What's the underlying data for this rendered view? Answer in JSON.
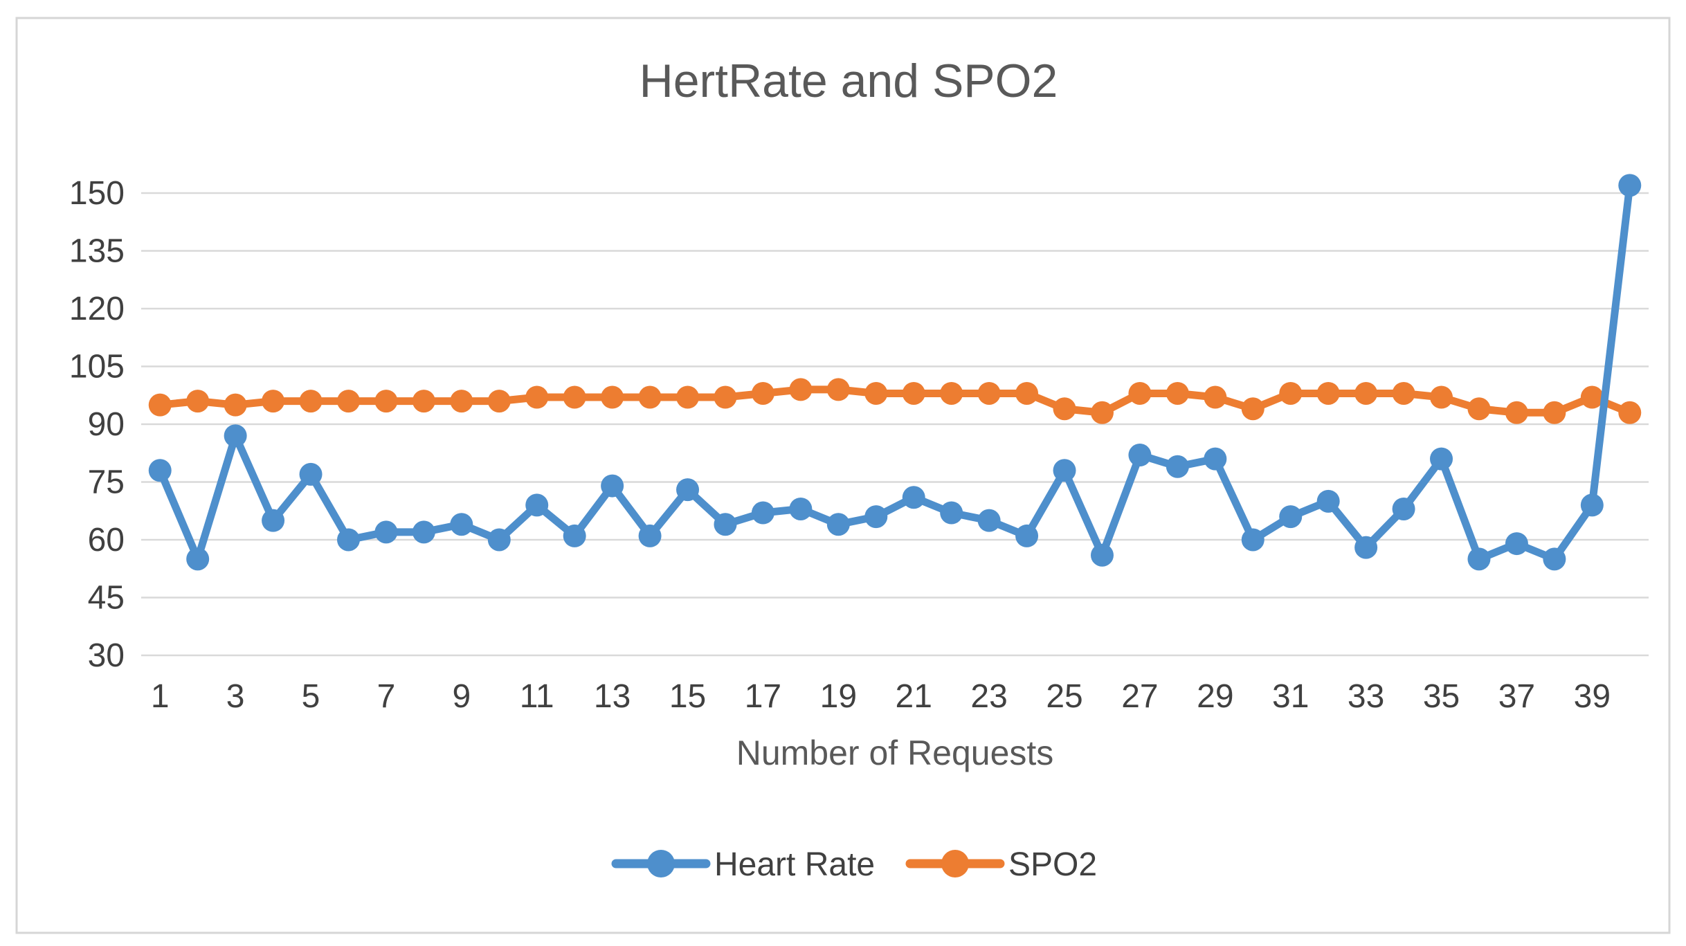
{
  "window": {
    "background": "#FFFFFF",
    "border_color": "#D6D6D6"
  },
  "chart_data": {
    "type": "line",
    "title": "HertRate and SPO2",
    "xlabel": "Number of Requests",
    "ylabel": "",
    "x": [
      1,
      2,
      3,
      4,
      5,
      6,
      7,
      8,
      9,
      10,
      11,
      12,
      13,
      14,
      15,
      16,
      17,
      18,
      19,
      20,
      21,
      22,
      23,
      24,
      25,
      26,
      27,
      28,
      29,
      30,
      31,
      32,
      33,
      34,
      35,
      36,
      37,
      38,
      39,
      40
    ],
    "x_tick_labels": [
      "1",
      "3",
      "5",
      "7",
      "9",
      "11",
      "13",
      "15",
      "17",
      "19",
      "21",
      "23",
      "25",
      "27",
      "29",
      "31",
      "33",
      "35",
      "37",
      "39"
    ],
    "y_ticks": [
      30,
      45,
      60,
      75,
      90,
      105,
      120,
      135,
      150
    ],
    "ylim": [
      30,
      160
    ],
    "grid": true,
    "legend_position": "bottom",
    "series": [
      {
        "name": "Heart Rate",
        "color": "#4E8FCC",
        "values": [
          78,
          55,
          87,
          65,
          77,
          60,
          62,
          62,
          64,
          60,
          69,
          61,
          74,
          61,
          73,
          64,
          67,
          68,
          64,
          66,
          71,
          67,
          65,
          61,
          78,
          56,
          82,
          79,
          81,
          60,
          66,
          70,
          58,
          68,
          81,
          55,
          59,
          55,
          69,
          152
        ]
      },
      {
        "name": "SPO2",
        "color": "#ED7D31",
        "values": [
          95,
          96,
          95,
          96,
          96,
          96,
          96,
          96,
          96,
          96,
          97,
          97,
          97,
          97,
          97,
          97,
          98,
          99,
          99,
          98,
          98,
          98,
          98,
          98,
          94,
          93,
          98,
          98,
          97,
          94,
          98,
          98,
          98,
          98,
          97,
          94,
          93,
          93,
          97,
          93
        ]
      }
    ]
  },
  "styles": {
    "grid_color": "#D9D9D9",
    "tick_label_color": "#404040",
    "title_color": "#595959",
    "axis_title_color": "#595959",
    "legend_text_color": "#404040"
  }
}
